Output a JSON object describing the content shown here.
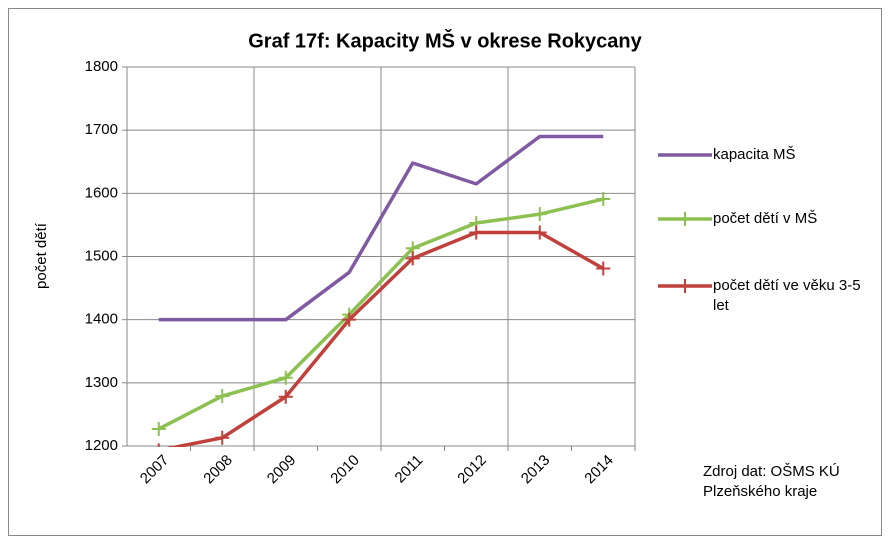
{
  "chart_data": {
    "type": "line",
    "title": "Graf 17f: Kapacity MŠ v okrese Rokycany",
    "y_label": "počet dětí",
    "categories": [
      "2007",
      "2008",
      "2009",
      "2010",
      "2011",
      "2012",
      "2013",
      "2014"
    ],
    "series": [
      {
        "name": "kapacita MŠ",
        "color": "#7f5aa2",
        "marker": false,
        "values": [
          1400,
          1400,
          1400,
          1475,
          1648,
          1615,
          1690,
          1690
        ]
      },
      {
        "name": "počet dětí v MŠ",
        "color": "#8cc152",
        "marker": true,
        "values": [
          1227,
          1279,
          1308,
          1408,
          1513,
          1553,
          1567,
          1591
        ]
      },
      {
        "name": "počet dětí ve věku 3-5 let",
        "color": "#c0403c",
        "marker": true,
        "values": [
          1193,
          1213,
          1278,
          1400,
          1497,
          1538,
          1538,
          1481
        ]
      }
    ],
    "ylim": [
      1200,
      1800
    ],
    "yticks": [
      1200,
      1300,
      1400,
      1500,
      1600,
      1700,
      1800
    ],
    "grid": true,
    "legend": "right",
    "source": [
      "Zdroj dat: OŠMS KÚ",
      "Plzeňského kraje"
    ]
  }
}
